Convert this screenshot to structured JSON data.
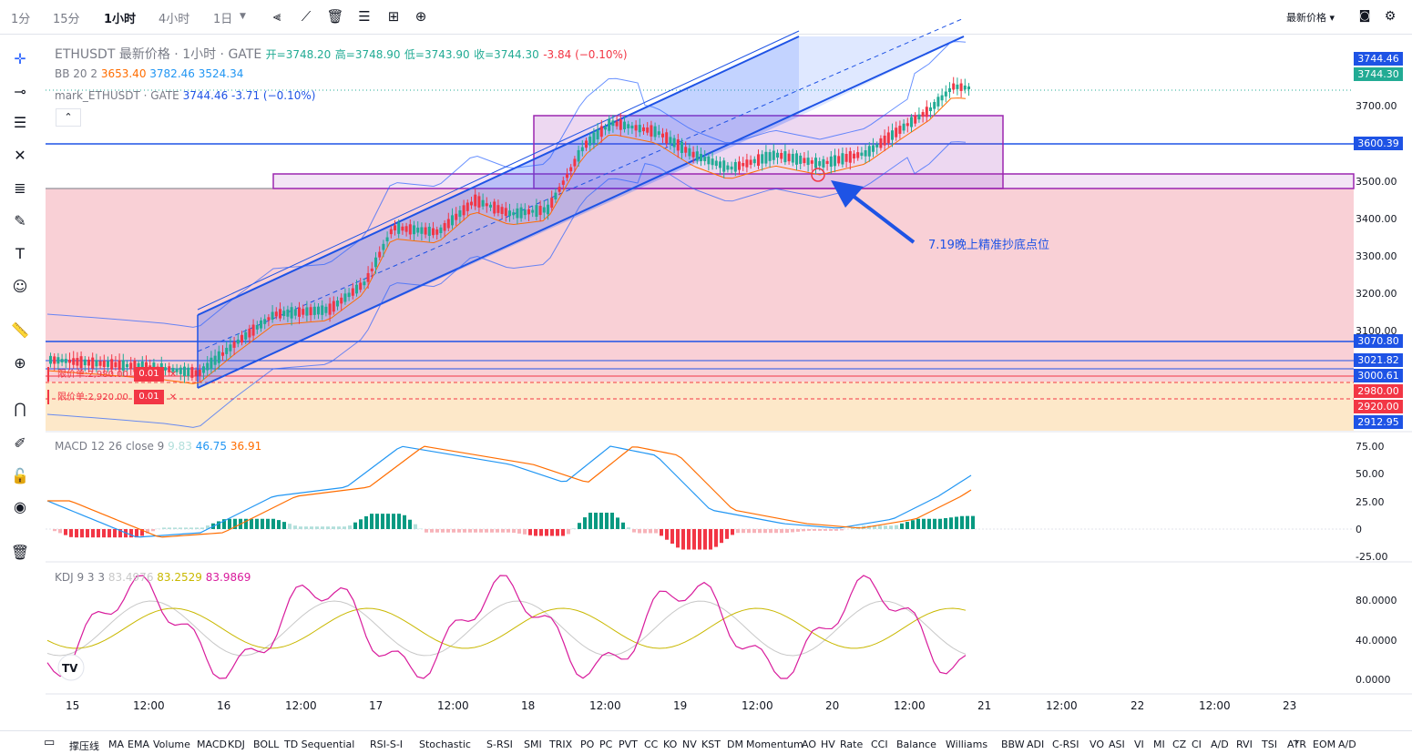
{
  "toolbar": {
    "timeframes": [
      "1分",
      "15分",
      "1小时",
      "4小时",
      "1日"
    ],
    "active_timeframe": "1小时",
    "price_type": "最新价格"
  },
  "legend": {
    "symbol_line": "ETHUSDT 最新价格 · 1小时 · GATE",
    "ohlc": {
      "open": "开=3748.20",
      "high": "高=3748.90",
      "low": "低=3743.90",
      "close": "收=3744.30",
      "change": "-3.84 (−0.10%)"
    },
    "bb": {
      "name": "BB 20 2",
      "v1": "3653.40",
      "v2": "3782.46",
      "v3": "3524.34"
    },
    "mark": {
      "name": "mark_ETHUSDT · GATE",
      "value": "3744.46",
      "change": "-3.71 (−0.10%)"
    }
  },
  "price_labels": [
    {
      "text": "3744.46",
      "color": "#1e53e5"
    },
    {
      "text": "3744.30",
      "color": "#22ab94"
    },
    {
      "text": "3600.39",
      "color": "#1e53e5"
    },
    {
      "text": "3070.80",
      "color": "#1e53e5"
    },
    {
      "text": "3021.82",
      "color": "#1e53e5"
    },
    {
      "text": "3000.61",
      "color": "#1e53e5"
    },
    {
      "text": "2980.00",
      "color": "#f23645"
    },
    {
      "text": "2920.00",
      "color": "#f23645"
    },
    {
      "text": "2912.95",
      "color": "#1e53e5"
    }
  ],
  "price_axis": [
    "3700.00",
    "3500.00",
    "3400.00",
    "3300.00",
    "3200.00",
    "3100.00"
  ],
  "orders": [
    {
      "label": "限价单:2,980.00",
      "qty": "0.01"
    },
    {
      "label": "限价单:2,920.00",
      "qty": "0.01"
    }
  ],
  "annotation": "7.19晚上精准抄底点位",
  "macd": {
    "name": "MACD 12 26 close 9",
    "hist": "9.83",
    "macd": "46.75",
    "signal": "36.91",
    "axis": [
      "75.00",
      "50.00",
      "25.00",
      "0",
      "-25.00"
    ]
  },
  "kdj": {
    "name": "KDJ 9 3 3",
    "k": "83.4976",
    "d": "83.2529",
    "j": "83.9869",
    "axis": [
      "80.0000",
      "40.0000",
      "0.0000"
    ]
  },
  "time_axis": [
    "15",
    "12:00",
    "16",
    "12:00",
    "17",
    "12:00",
    "18",
    "12:00",
    "19",
    "12:00",
    "20",
    "12:00",
    "21",
    "12:00",
    "22",
    "12:00",
    "23"
  ],
  "indicators": [
    "撑压线",
    "MA",
    "EMA",
    "Volume",
    "MACD",
    "KDJ",
    "BOLL",
    "TD Sequential",
    "RSI-S-I",
    "Stochastic",
    "S-RSI",
    "SMI",
    "TRIX",
    "PO",
    "PC",
    "PVT",
    "CC",
    "KO",
    "NV",
    "KST",
    "DM",
    "Momentum",
    "AO",
    "HV",
    "Rate",
    "CCI",
    "Balance",
    "Williams",
    "BBW",
    "ADI",
    "C-RSI",
    "VO",
    "ASI",
    "VI",
    "MI",
    "CZ",
    "CI",
    "A/D",
    "RVI",
    "TSI",
    "ATR",
    "EOM",
    "A/D"
  ],
  "colors": {
    "up": "#22ab94",
    "down": "#f23645",
    "blue": "#1e53e5",
    "purple": "#9c27b0"
  }
}
